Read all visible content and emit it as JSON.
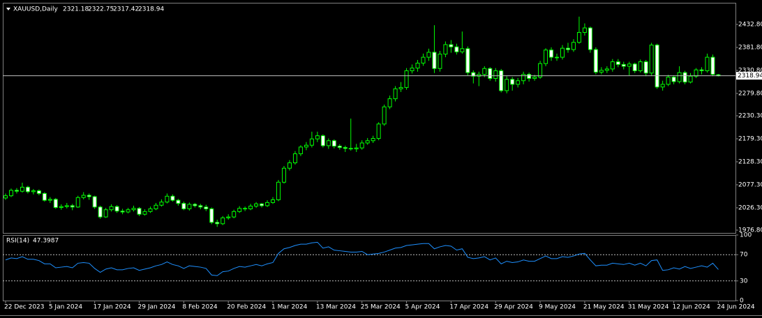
{
  "chart_data": {
    "type": "candlestick",
    "symbol": "XAUUSD,Daily",
    "categories": [
      "22 Dec 2023",
      null,
      null,
      null,
      null,
      null,
      null,
      null,
      "5 Jan 2024",
      null,
      null,
      null,
      null,
      null,
      null,
      null,
      "17 Jan 2024",
      null,
      null,
      null,
      null,
      null,
      null,
      null,
      "29 Jan 2024",
      null,
      null,
      null,
      null,
      null,
      null,
      null,
      "8 Feb 2024",
      null,
      null,
      null,
      null,
      null,
      null,
      null,
      "20 Feb 2024",
      null,
      null,
      null,
      null,
      null,
      null,
      null,
      "1 Mar 2024",
      null,
      null,
      null,
      null,
      null,
      null,
      null,
      "13 Mar 2024",
      null,
      null,
      null,
      null,
      null,
      null,
      null,
      "25 Mar 2024",
      null,
      null,
      null,
      null,
      null,
      null,
      null,
      "5 Apr 2024",
      null,
      null,
      null,
      null,
      null,
      null,
      null,
      "17 Apr 2024",
      null,
      null,
      null,
      null,
      null,
      null,
      null,
      "29 Apr 2024",
      null,
      null,
      null,
      null,
      null,
      null,
      null,
      "9 May 2024",
      null,
      null,
      null,
      null,
      null,
      null,
      null,
      "21 May 2024",
      null,
      null,
      null,
      null,
      null,
      null,
      null,
      "31 May 2024",
      null,
      null,
      null,
      null,
      null,
      null,
      null,
      "12 Jun 2024",
      null,
      null,
      null,
      null,
      null,
      null,
      null,
      "24 Jun 2024"
    ],
    "open": [
      2048,
      2053,
      2065,
      2063,
      2072,
      2062,
      2064,
      2058,
      2043,
      2045,
      2027,
      2029,
      2031,
      2028,
      2049,
      2054,
      2051,
      2028,
      2006,
      2022,
      2029,
      2019,
      2017,
      2022,
      2025,
      2012,
      2018,
      2024,
      2032,
      2039,
      2052,
      2043,
      2036,
      2024,
      2034,
      2031,
      2028,
      2024,
      1994,
      1991,
      2004,
      2006,
      2018,
      2025,
      2024,
      2030,
      2035,
      2031,
      2038,
      2044,
      2083,
      2114,
      2126,
      2146,
      2161,
      2165,
      2179,
      2186,
      2164,
      2175,
      2163,
      2160,
      2158,
      2157,
      2159,
      2170,
      2175,
      2180,
      2212,
      2250,
      2268,
      2290,
      2293,
      2330,
      2336,
      2347,
      2360,
      2371,
      2335,
      2367,
      2388,
      2383,
      2372,
      2379,
      2326,
      2318,
      2322,
      2335,
      2313,
      2330,
      2286,
      2311,
      2300,
      2308,
      2322,
      2313,
      2316,
      2346,
      2376,
      2360,
      2360,
      2380,
      2377,
      2393,
      2415,
      2425,
      2377,
      2327,
      2331,
      2334,
      2350,
      2344,
      2340,
      2345,
      2330,
      2350,
      2325,
      2387,
      2294,
      2300,
      2316,
      2306,
      2326,
      2305,
      2318,
      2332,
      2330,
      2360,
      2321.18
    ],
    "high": [
      2058,
      2069,
      2070,
      2082,
      2075,
      2068,
      2067,
      2061,
      2050,
      2048,
      2034,
      2037,
      2035,
      2053,
      2061,
      2058,
      2053,
      2031,
      2026,
      2034,
      2032,
      2024,
      2026,
      2031,
      2028,
      2023,
      2029,
      2037,
      2045,
      2058,
      2056,
      2046,
      2040,
      2038,
      2037,
      2035,
      2033,
      2027,
      2000,
      2008,
      2012,
      2022,
      2030,
      2029,
      2035,
      2039,
      2037,
      2043,
      2050,
      2088,
      2119,
      2132,
      2152,
      2165,
      2172,
      2195,
      2195,
      2189,
      2180,
      2178,
      2167,
      2164,
      2224,
      2168,
      2176,
      2181,
      2186,
      2216,
      2255,
      2275,
      2296,
      2305,
      2336,
      2344,
      2354,
      2368,
      2379,
      2431,
      2374,
      2395,
      2398,
      2390,
      2417,
      2384,
      2331,
      2328,
      2340,
      2338,
      2336,
      2334,
      2318,
      2316,
      2314,
      2328,
      2326,
      2321,
      2352,
      2380,
      2382,
      2368,
      2387,
      2392,
      2400,
      2450,
      2435,
      2428,
      2382,
      2338,
      2340,
      2356,
      2356,
      2350,
      2350,
      2348,
      2355,
      2354,
      2392,
      2390,
      2308,
      2321,
      2320,
      2340,
      2330,
      2325,
      2336,
      2338,
      2368,
      2366,
      2322.75
    ],
    "low": [
      2044,
      2050,
      2058,
      2060,
      2058,
      2056,
      2054,
      2040,
      2037,
      2024,
      2022,
      2025,
      2021,
      2026,
      2045,
      2044,
      2024,
      2002,
      2004,
      2018,
      2015,
      2012,
      2014,
      2018,
      2008,
      2009,
      2015,
      2021,
      2029,
      2036,
      2040,
      2031,
      2021,
      2020,
      2027,
      2023,
      2019,
      1990,
      1984,
      1988,
      2000,
      2003,
      2015,
      2019,
      2021,
      2026,
      2027,
      2028,
      2035,
      2041,
      2080,
      2109,
      2122,
      2141,
      2154,
      2160,
      2172,
      2160,
      2157,
      2158,
      2155,
      2150,
      2153,
      2150,
      2155,
      2166,
      2170,
      2176,
      2208,
      2245,
      2262,
      2283,
      2288,
      2324,
      2328,
      2341,
      2352,
      2325,
      2328,
      2360,
      2370,
      2366,
      2368,
      2320,
      2302,
      2296,
      2316,
      2308,
      2306,
      2282,
      2280,
      2286,
      2293,
      2300,
      2306,
      2308,
      2312,
      2340,
      2352,
      2352,
      2355,
      2370,
      2372,
      2390,
      2408,
      2370,
      2322,
      2322,
      2325,
      2328,
      2338,
      2333,
      2320,
      2325,
      2326,
      2318,
      2320,
      2290,
      2286,
      2296,
      2300,
      2302,
      2300,
      2302,
      2314,
      2322,
      2326,
      2318,
      2317.42
    ],
    "close": [
      2053,
      2065,
      2063,
      2072,
      2062,
      2064,
      2058,
      2043,
      2045,
      2027,
      2029,
      2031,
      2028,
      2049,
      2054,
      2051,
      2028,
      2006,
      2022,
      2029,
      2019,
      2017,
      2022,
      2025,
      2012,
      2018,
      2024,
      2032,
      2039,
      2052,
      2043,
      2036,
      2024,
      2034,
      2031,
      2028,
      2024,
      1994,
      1991,
      2004,
      2006,
      2018,
      2025,
      2024,
      2030,
      2035,
      2031,
      2038,
      2044,
      2083,
      2114,
      2126,
      2146,
      2161,
      2165,
      2179,
      2186,
      2164,
      2175,
      2163,
      2160,
      2158,
      2157,
      2159,
      2170,
      2175,
      2180,
      2212,
      2250,
      2268,
      2290,
      2293,
      2330,
      2336,
      2347,
      2360,
      2371,
      2335,
      2367,
      2388,
      2383,
      2372,
      2379,
      2326,
      2318,
      2322,
      2335,
      2313,
      2330,
      2286,
      2311,
      2300,
      2308,
      2322,
      2313,
      2316,
      2346,
      2376,
      2360,
      2360,
      2380,
      2377,
      2393,
      2415,
      2425,
      2377,
      2327,
      2331,
      2334,
      2350,
      2344,
      2340,
      2345,
      2330,
      2350,
      2325,
      2387,
      2294,
      2300,
      2316,
      2306,
      2326,
      2305,
      2318,
      2332,
      2330,
      2360,
      2322,
      2318.94
    ],
    "ylim": [
      1970.6,
      2480.7
    ],
    "yticks": [
      {
        "value": 2432.8,
        "label": "2432.80"
      },
      {
        "value": 2381.8,
        "label": "2381.80"
      },
      {
        "value": 2330.8,
        "label": "2330.80"
      },
      {
        "value": 2279.8,
        "label": "2279.80"
      },
      {
        "value": 2230.3,
        "label": "2230.30"
      },
      {
        "value": 2179.3,
        "label": "2179.30"
      },
      {
        "value": 2128.3,
        "label": "2128.30"
      },
      {
        "value": 2077.3,
        "label": "2077.30"
      },
      {
        "value": 2026.3,
        "label": "2026.30"
      },
      {
        "value": 1976.8,
        "label": "1976.80"
      }
    ],
    "bull_color": "#000000",
    "bear_color": "#ffffff",
    "wick_color": "#00ff00",
    "price_line_color": "#c0c0c0",
    "indicator": {
      "type": "line",
      "name": "RSI(14)",
      "color": "#1e90ff",
      "values": [
        62,
        65,
        64,
        67,
        63,
        63,
        61,
        56,
        56,
        50,
        51,
        52,
        50,
        57,
        58,
        57,
        49,
        43,
        48,
        50,
        47,
        47,
        49,
        50,
        46,
        48,
        50,
        53,
        55,
        59,
        55,
        53,
        49,
        53,
        52,
        51,
        49,
        39,
        38,
        44,
        45,
        49,
        52,
        51,
        53,
        55,
        53,
        56,
        58,
        72,
        79,
        81,
        84,
        86,
        86,
        88,
        89,
        80,
        82,
        77,
        76,
        75,
        74,
        74,
        75,
        70,
        71,
        72,
        74,
        77,
        80,
        81,
        84,
        85,
        86,
        87,
        87,
        79,
        82,
        84,
        83,
        77,
        79,
        66,
        64,
        65,
        67,
        62,
        65,
        56,
        60,
        58,
        59,
        62,
        60,
        60,
        64,
        68,
        64,
        64,
        67,
        66,
        68,
        71,
        72,
        62,
        53,
        54,
        54,
        57,
        56,
        55,
        57,
        54,
        57,
        53,
        61,
        62,
        46,
        47,
        50,
        48,
        52,
        49,
        51,
        53,
        51,
        57,
        47.3987
      ],
      "ylim": [
        0,
        100
      ],
      "yticks": [
        100,
        70,
        30,
        0
      ],
      "levels": [
        70,
        30
      ]
    }
  }
}
